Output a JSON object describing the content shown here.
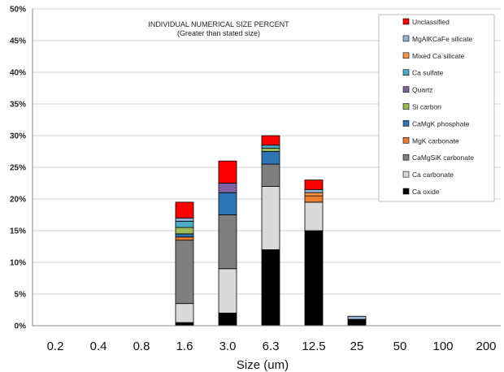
{
  "chart_data": {
    "type": "bar",
    "stacked": true,
    "title": "INDIVIDUAL NUMERICAL SIZE PERCENT",
    "subtitle": "(Greater than stated size)",
    "xlabel": "Size (um)",
    "ylabel": "",
    "ylim": [
      0,
      50
    ],
    "yticks": [
      "0%",
      "5%",
      "10%",
      "15%",
      "20%",
      "25%",
      "30%",
      "35%",
      "40%",
      "45%",
      "50%"
    ],
    "categories": [
      "0.2",
      "0.4",
      "0.8",
      "1.6",
      "3.0",
      "6.3",
      "12.5",
      "25",
      "50",
      "100",
      "200"
    ],
    "grid": true,
    "legend_position": "top-right",
    "series": [
      {
        "name": "Ca oxide",
        "color": "#000000",
        "values": [
          0,
          0,
          0,
          0.5,
          2,
          12,
          15,
          1,
          0,
          0,
          0
        ]
      },
      {
        "name": "Ca carbonate",
        "color": "#d9d9d9",
        "values": [
          0,
          0,
          0,
          3,
          7,
          10,
          4.5,
          0,
          0,
          0,
          0
        ]
      },
      {
        "name": "CaMgSiK carbonate",
        "color": "#7f7f7f",
        "values": [
          0,
          0,
          0,
          10,
          8.5,
          3.5,
          0,
          0,
          0,
          0,
          0
        ]
      },
      {
        "name": "MgK carbonate",
        "color": "#ed7d31",
        "values": [
          0,
          0,
          0,
          0.5,
          0,
          0,
          1,
          0,
          0,
          0,
          0
        ]
      },
      {
        "name": "CaMgK phosphate",
        "color": "#2e75b6",
        "values": [
          0,
          0,
          0,
          0.5,
          3.5,
          2,
          0,
          0,
          0,
          0,
          0
        ]
      },
      {
        "name": "Si carbon",
        "color": "#9bbb59",
        "values": [
          0,
          0,
          0,
          1,
          0,
          0.5,
          0,
          0,
          0,
          0,
          0
        ]
      },
      {
        "name": "Quartz",
        "color": "#8064a2",
        "values": [
          0,
          0,
          0,
          0,
          1.5,
          0,
          0,
          0,
          0,
          0,
          0
        ]
      },
      {
        "name": "Ca sulfate",
        "color": "#4bacc6",
        "values": [
          0,
          0,
          0,
          1,
          0,
          0.5,
          0,
          0,
          0,
          0,
          0
        ]
      },
      {
        "name": "Mixed Ca silicate",
        "color": "#f79646",
        "values": [
          0,
          0,
          0,
          0,
          0,
          0,
          0.5,
          0,
          0,
          0,
          0
        ]
      },
      {
        "name": "MgAlKCaFe silicate",
        "color": "#95b3d7",
        "values": [
          0,
          0,
          0,
          0.5,
          0,
          0,
          0.5,
          0.5,
          0,
          0,
          0
        ]
      },
      {
        "name": "Unclassified",
        "color": "#ff0000",
        "values": [
          0,
          0,
          0,
          2.5,
          3.5,
          1.5,
          1.5,
          0,
          0,
          0,
          0
        ]
      }
    ]
  }
}
